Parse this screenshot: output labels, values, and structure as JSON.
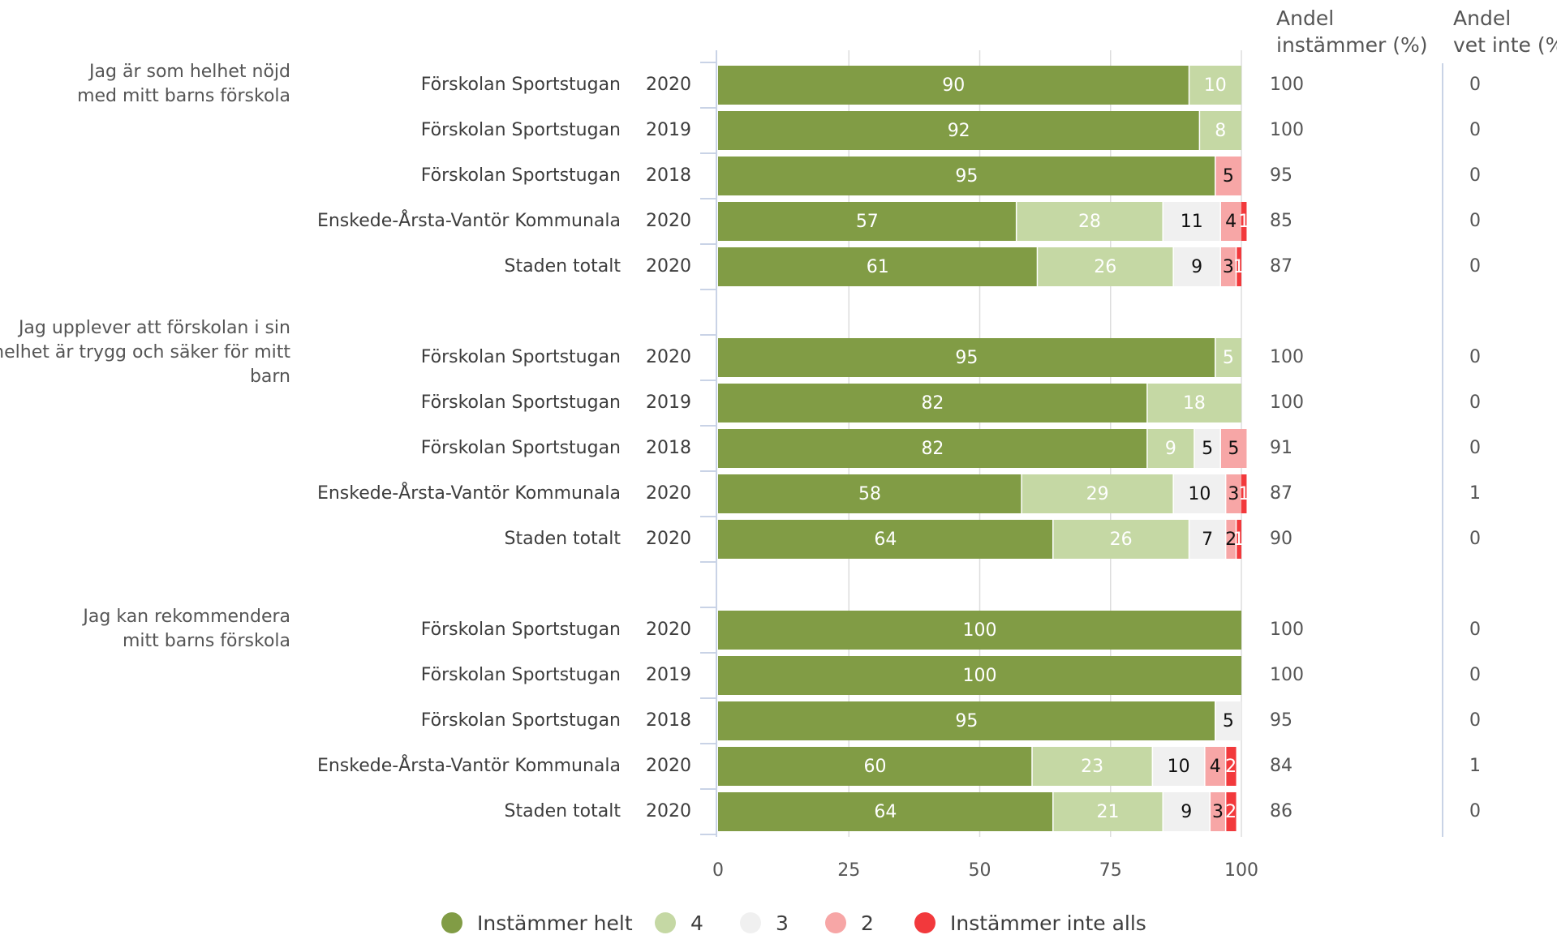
{
  "headers": {
    "share_agree": [
      "Andel",
      "instämmer (%)"
    ],
    "share_dont_know": [
      "Andel",
      "vet inte (%)"
    ]
  },
  "colors": {
    "grid": "#dddddd",
    "axis": "#c9d3e6",
    "divider": "#c9d3e6"
  },
  "chart_data": {
    "type": "bar",
    "orientation": "horizontal",
    "stacked": true,
    "xlim": [
      0,
      100
    ],
    "xticks": [
      0,
      25,
      50,
      75,
      100
    ],
    "grid": true,
    "legend_position": "bottom",
    "series": [
      {
        "name": "Instämmer helt",
        "color": "#819c45",
        "label_color": "#ffffff"
      },
      {
        "name": "4",
        "color": "#c5d8a4",
        "label_color": "#ffffff"
      },
      {
        "name": "3",
        "color": "#f0f0f0",
        "label_color": "#111111"
      },
      {
        "name": "2",
        "color": "#f7a6a6",
        "label_color": "#111111"
      },
      {
        "name": "Instämmer inte alls",
        "color": "#f2393c",
        "label_color": "#ffffff"
      }
    ],
    "groups": [
      {
        "question": [
          "Jag är som helhet nöjd",
          "med mitt barns förskola"
        ],
        "rows": [
          {
            "label": "Förskolan Sportstugan",
            "year": "2020",
            "values": [
              90,
              10,
              0,
              0,
              0
            ],
            "share_agree": "100",
            "share_dont_know": "0"
          },
          {
            "label": "Förskolan Sportstugan",
            "year": "2019",
            "values": [
              92,
              8,
              0,
              0,
              0
            ],
            "share_agree": "100",
            "share_dont_know": "0"
          },
          {
            "label": "Förskolan Sportstugan",
            "year": "2018",
            "values": [
              95,
              0,
              0,
              5,
              0
            ],
            "share_agree": "95",
            "share_dont_know": "0"
          },
          {
            "label": "Enskede-Årsta-Vantör Kommunala",
            "year": "2020",
            "values": [
              57,
              28,
              11,
              4,
              1
            ],
            "share_agree": "85",
            "share_dont_know": "0"
          },
          {
            "label": "Staden totalt",
            "year": "2020",
            "values": [
              61,
              26,
              9,
              3,
              1
            ],
            "share_agree": "87",
            "share_dont_know": "0"
          }
        ]
      },
      {
        "question": [
          "Jag upplever att förskolan i sin",
          "helhet är trygg och säker för mitt",
          "barn"
        ],
        "rows": [
          {
            "label": "Förskolan Sportstugan",
            "year": "2020",
            "values": [
              95,
              5,
              0,
              0,
              0
            ],
            "share_agree": "100",
            "share_dont_know": "0"
          },
          {
            "label": "Förskolan Sportstugan",
            "year": "2019",
            "values": [
              82,
              18,
              0,
              0,
              0
            ],
            "share_agree": "100",
            "share_dont_know": "0"
          },
          {
            "label": "Förskolan Sportstugan",
            "year": "2018",
            "values": [
              82,
              9,
              5,
              5,
              0
            ],
            "share_agree": "91",
            "share_dont_know": "0"
          },
          {
            "label": "Enskede-Årsta-Vantör Kommunala",
            "year": "2020",
            "values": [
              58,
              29,
              10,
              3,
              1
            ],
            "share_agree": "87",
            "share_dont_know": "1"
          },
          {
            "label": "Staden totalt",
            "year": "2020",
            "values": [
              64,
              26,
              7,
              2,
              1
            ],
            "share_agree": "90",
            "share_dont_know": "0"
          }
        ]
      },
      {
        "question": [
          "Jag kan rekommendera",
          "mitt barns förskola"
        ],
        "rows": [
          {
            "label": "Förskolan Sportstugan",
            "year": "2020",
            "values": [
              100,
              0,
              0,
              0,
              0
            ],
            "share_agree": "100",
            "share_dont_know": "0"
          },
          {
            "label": "Förskolan Sportstugan",
            "year": "2019",
            "values": [
              100,
              0,
              0,
              0,
              0
            ],
            "share_agree": "100",
            "share_dont_know": "0"
          },
          {
            "label": "Förskolan Sportstugan",
            "year": "2018",
            "values": [
              95,
              0,
              5,
              0,
              0
            ],
            "share_agree": "95",
            "share_dont_know": "0"
          },
          {
            "label": "Enskede-Årsta-Vantör Kommunala",
            "year": "2020",
            "values": [
              60,
              23,
              10,
              4,
              2
            ],
            "share_agree": "84",
            "share_dont_know": "1"
          },
          {
            "label": "Staden totalt",
            "year": "2020",
            "values": [
              64,
              21,
              9,
              3,
              2
            ],
            "share_agree": "86",
            "share_dont_know": "0"
          }
        ]
      }
    ]
  }
}
